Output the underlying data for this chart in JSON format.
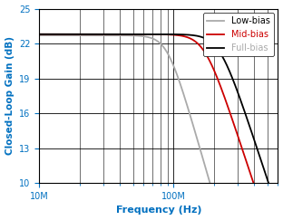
{
  "title": "",
  "xlabel": "Frequency (Hz)",
  "ylabel": "Closed-Loop Gain (dB)",
  "xlim": [
    10000000.0,
    600000000.0
  ],
  "ylim": [
    10,
    25
  ],
  "yticks": [
    10,
    13,
    16,
    19,
    22,
    25
  ],
  "xtick_locs": [
    10000000.0,
    100000000.0
  ],
  "xtick_labels": [
    "10M",
    "100M"
  ],
  "legend_labels": [
    "Full-bias",
    "Mid-bias",
    "Low-bias"
  ],
  "legend_colors": [
    "#000000",
    "#cc0000",
    "#aaaaaa"
  ],
  "background_color": "#ffffff",
  "grid_color": "#000000",
  "label_color": "#0070c0",
  "full_bias": {
    "flat_gain": 22.8,
    "f3db": 220000000.0,
    "order": 3.5
  },
  "mid_bias": {
    "flat_gain": 22.8,
    "f3db": 170000000.0,
    "order": 3.5
  },
  "low_bias": {
    "flat_gain": 22.7,
    "f3db": 90000000.0,
    "order": 4.0
  }
}
